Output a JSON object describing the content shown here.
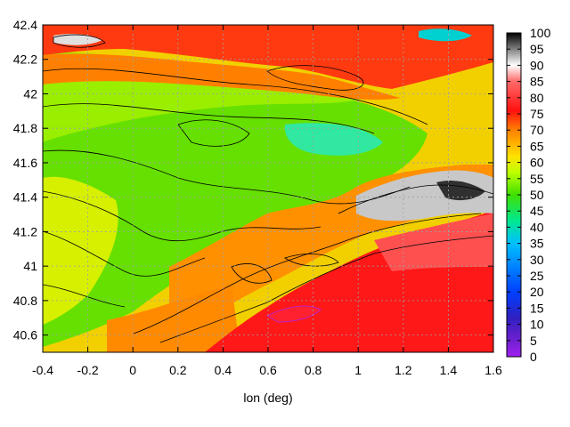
{
  "chart_data": {
    "type": "heatmap",
    "xlabel": "lon (deg)",
    "ylabel": "",
    "xlim": [
      -0.4,
      1.6
    ],
    "ylim": [
      40.5,
      42.4
    ],
    "x_ticks": [
      "-0.4",
      "-0.2",
      "0",
      "0.2",
      "0.4",
      "0.6",
      "0.8",
      "1",
      "1.2",
      "1.4",
      "1.6"
    ],
    "y_ticks": [
      "40.6",
      "40.8",
      "41",
      "41.2",
      "41.4",
      "41.6",
      "41.8",
      "42",
      "42.2",
      "42.4"
    ],
    "colorbar": {
      "min": 0,
      "max": 100,
      "ticks": [
        "0",
        "5",
        "10",
        "15",
        "20",
        "25",
        "30",
        "35",
        "40",
        "45",
        "50",
        "55",
        "60",
        "65",
        "70",
        "75",
        "80",
        "85",
        "90",
        "95",
        "100"
      ],
      "colors": [
        "#a020f0",
        "#3030d0",
        "#0040ff",
        "#00c0ff",
        "#00ff80",
        "#40e000",
        "#c0ff00",
        "#ffe000",
        "#ff8000",
        "#ff1010",
        "#ff6060",
        "#ffffff",
        "#808080",
        "#000000"
      ]
    },
    "grid": true,
    "contours": true
  }
}
